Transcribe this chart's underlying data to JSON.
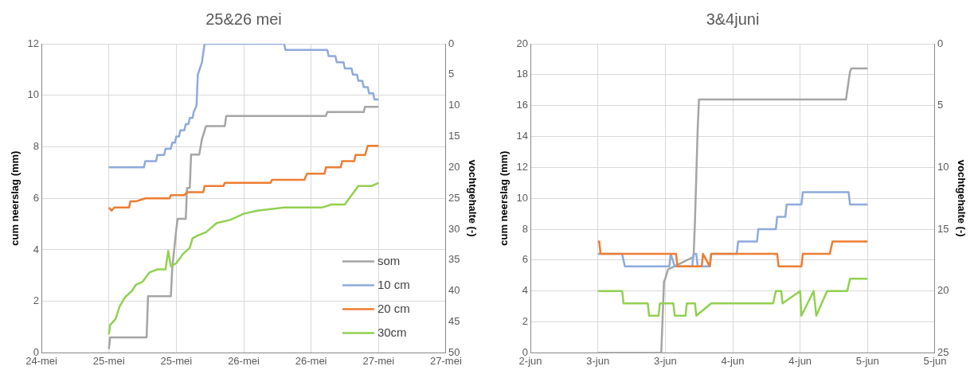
{
  "chart_data": [
    {
      "type": "line",
      "title": "25&26 mei",
      "ylabel": "cum neerslag (mm)",
      "y2label": "vochtgehalte (-)",
      "xlim": [
        "--05-24T12:00",
        "--05-27T12:00"
      ],
      "xticks": [
        {
          "value": "--05-24T12:00",
          "label": "24-mei"
        },
        {
          "value": "--05-25T00:00",
          "label": "25-mei"
        },
        {
          "value": "--05-25T12:00",
          "label": "25-mei"
        },
        {
          "value": "--05-26T00:00",
          "label": "26-mei"
        },
        {
          "value": "--05-26T12:00",
          "label": "26-mei"
        },
        {
          "value": "--05-27T00:00",
          "label": "27-mei"
        },
        {
          "value": "--05-27T12:00",
          "label": "27-mei"
        }
      ],
      "ylim": [
        0,
        12
      ],
      "yticks": [
        0,
        2,
        4,
        6,
        8,
        10,
        12
      ],
      "y2lim": [
        50,
        0
      ],
      "y2ticks": [
        0,
        5,
        10,
        15,
        20,
        25,
        30,
        35,
        40,
        45,
        50
      ],
      "grid": true,
      "legend": "bottom right",
      "series": [
        {
          "name": "som",
          "color": "#a5a5a5",
          "x": [
            "--05-25T00:00",
            "--05-25T00:14",
            "--05-25T06:43",
            "--05-25T06:58",
            "--05-25T11:02",
            "--05-25T11:17",
            "--05-25T12:00",
            "--05-25T12:14",
            "--05-25T13:41",
            "--05-25T13:55",
            "--05-25T14:24",
            "--05-25T14:38",
            "--05-25T16:05",
            "--05-25T16:34",
            "--05-25T17:17",
            "--05-25T20:38",
            "--05-25T20:53",
            "--05-26T14:38",
            "--05-26T14:53",
            "--05-26T21:22",
            "--05-26T21:36",
            "--05-27T00:00"
          ],
          "values": [
            0.15,
            0.6,
            0.6,
            2.2,
            2.2,
            3.3,
            4.8,
            5.2,
            5.2,
            6.4,
            6.4,
            7.7,
            7.7,
            8.3,
            8.8,
            8.8,
            9.2,
            9.2,
            9.35,
            9.35,
            9.55,
            9.55
          ]
        },
        {
          "name": "10 cm",
          "color": "#8eaadb",
          "axis": "y2",
          "x": [
            "--05-25T00:00",
            "--05-25T06:14",
            "--05-25T06:29",
            "--05-25T08:24",
            "--05-25T08:38",
            "--05-25T09:50",
            "--05-25T10:05",
            "--05-25T11:02",
            "--05-25T11:17",
            "--05-25T11:46",
            "--05-25T12:00",
            "--05-25T12:29",
            "--05-25T12:43",
            "--05-25T13:26",
            "--05-25T13:41",
            "--05-25T14:10",
            "--05-25T14:24",
            "--05-25T14:53",
            "--05-25T15:07",
            "--05-25T15:36",
            "--05-25T15:43",
            "--05-25T15:50",
            "--05-25T16:34",
            "--05-25T16:48",
            "--05-25T17:02",
            "--05-26T07:12",
            "--05-26T07:26",
            "--05-26T14:53",
            "--05-26T15:07",
            "--05-26T16:19",
            "--05-26T16:34",
            "--05-26T17:46",
            "--05-26T18:00",
            "--05-26T19:12",
            "--05-26T19:26",
            "--05-26T20:10",
            "--05-26T20:24",
            "--05-26T21:07",
            "--05-26T21:22",
            "--05-26T22:05",
            "--05-26T22:19",
            "--05-26T23:02",
            "--05-26T23:17",
            "--05-27T00:00"
          ],
          "values": [
            20,
            20,
            19,
            19,
            18,
            18,
            17,
            17,
            16,
            16,
            15,
            15,
            14,
            14,
            13,
            13,
            12,
            12,
            11,
            10,
            7.5,
            5,
            3,
            1.5,
            0,
            0,
            1,
            1,
            2,
            2,
            3,
            3,
            4,
            4,
            5,
            5,
            6,
            6,
            7,
            7,
            8,
            8,
            9,
            9
          ]
        },
        {
          "name": "20 cm",
          "color": "#ed7d31",
          "axis": "y2",
          "x": [
            "--05-25T00:00",
            "--05-25T00:29",
            "--05-25T00:58",
            "--05-25T01:26",
            "--05-25T03:36",
            "--05-25T03:50",
            "--05-25T04:48",
            "--05-25T06:29",
            "--05-25T10:48",
            "--05-25T11:02",
            "--05-25T12:00",
            "--05-25T13:26",
            "--05-25T13:55",
            "--05-25T16:48",
            "--05-25T17:02",
            "--05-25T20:24",
            "--05-25T20:38",
            "--05-26T04:48",
            "--05-26T05:02",
            "--05-26T10:48",
            "--05-26T11:17",
            "--05-26T12:00",
            "--05-26T14:24",
            "--05-26T14:38",
            "--05-26T17:17",
            "--05-26T17:31",
            "--05-26T19:41",
            "--05-26T19:55",
            "--05-26T21:36",
            "--05-26T22:05",
            "--05-27T00:00"
          ],
          "values": [
            26.5,
            27,
            26.5,
            26.5,
            26.5,
            25.5,
            25.5,
            25,
            25,
            24.5,
            24.5,
            24.5,
            24,
            24,
            23,
            23,
            22.5,
            22.5,
            22,
            22,
            21,
            21,
            21,
            20,
            20,
            19,
            19,
            18,
            18,
            16.5,
            16.5
          ]
        },
        {
          "name": "30cm",
          "color": "#92d050",
          "axis": "y2",
          "x": [
            "--05-25T00:00",
            "--05-25T00:14",
            "--05-25T01:12",
            "--05-25T01:55",
            "--05-25T02:53",
            "--05-25T04:05",
            "--05-25T04:48",
            "--05-25T06:00",
            "--05-25T07:12",
            "--05-25T08:38",
            "--05-25T10:05",
            "--05-25T10:34",
            "--05-25T11:02",
            "--05-25T12:00",
            "--05-25T13:12",
            "--05-25T14:24",
            "--05-25T14:53",
            "--05-25T15:50",
            "--05-25T17:17",
            "--05-25T19:12",
            "--05-25T21:36",
            "--05-26T00:00",
            "--05-26T02:24",
            "--05-26T07:12",
            "--05-26T12:00",
            "--05-26T13:55",
            "--05-26T15:36",
            "--05-26T18:00",
            "--05-26T19:12",
            "--05-26T20:24",
            "--05-26T22:48",
            "--05-27T00:00"
          ],
          "values": [
            47,
            45.5,
            44.5,
            42.5,
            41,
            40,
            39,
            38.5,
            37,
            36.5,
            36.5,
            33.5,
            36,
            35.5,
            34,
            33,
            31.5,
            31,
            30.5,
            29,
            28.5,
            27.5,
            27,
            26.5,
            26.5,
            26.5,
            26,
            26,
            24.5,
            23,
            23,
            22.5
          ]
        }
      ]
    },
    {
      "type": "line",
      "title": "3&4juni",
      "ylabel": "cum neerslag (mm)",
      "y2label": "vochtgehalte (-)",
      "xlim": [
        "--06-02T12:00",
        "--06-05T12:00"
      ],
      "xticks": [
        {
          "value": "--06-02T12:00",
          "label": "2-jun"
        },
        {
          "value": "--06-03T00:00",
          "label": "3-jun"
        },
        {
          "value": "--06-03T12:00",
          "label": "3-jun"
        },
        {
          "value": "--06-04T00:00",
          "label": "4-jun"
        },
        {
          "value": "--06-04T12:00",
          "label": "4-jun"
        },
        {
          "value": "--06-05T00:00",
          "label": "5-jun"
        },
        {
          "value": "--06-05T12:00",
          "label": "5-jun"
        }
      ],
      "ylim": [
        0,
        20
      ],
      "yticks": [
        0,
        2,
        4,
        6,
        8,
        10,
        12,
        14,
        16,
        18,
        20
      ],
      "y2lim": [
        25,
        0
      ],
      "y2ticks": [
        0,
        5,
        10,
        15,
        20,
        25
      ],
      "grid": true,
      "series": [
        {
          "color": "#a5a5a5",
          "x": [
            "--06-03T00:00",
            "--06-03T11:17",
            "--06-03T11:46",
            "--06-03T12:00",
            "--06-03T12:29",
            "--06-03T17:02",
            "--06-03T17:17",
            "--06-03T17:46",
            "--06-03T18:00",
            "--06-04T20:10",
            "--06-04T20:53",
            "--06-04T21:07",
            "--06-05T00:00"
          ],
          "values": [
            0,
            0,
            4.6,
            4.8,
            5.4,
            6.2,
            8.5,
            14.5,
            16.4,
            16.4,
            18.2,
            18.4,
            18.4
          ]
        },
        {
          "color": "#8eaadb",
          "axis": "y2",
          "x": [
            "--06-03T00:00",
            "--06-03T04:19",
            "--06-03T04:48",
            "--06-03T12:43",
            "--06-03T12:58",
            "--06-03T13:41",
            "--06-03T16:48",
            "--06-03T17:02",
            "--06-03T17:31",
            "--06-03T17:46",
            "--06-03T18:29",
            "--06-03T19:55",
            "--06-03T20:10",
            "--06-04T00:43",
            "--06-04T00:58",
            "--06-04T04:19",
            "--06-04T04:34",
            "--06-04T07:41",
            "--06-04T07:55",
            "--06-04T09:22",
            "--06-04T09:36",
            "--06-04T12:14",
            "--06-04T12:29",
            "--06-04T20:38",
            "--06-04T20:53",
            "--06-05T00:00"
          ],
          "values": [
            17,
            17,
            18,
            18,
            17,
            18,
            18,
            17,
            17,
            18,
            18,
            18,
            17,
            17,
            16,
            16,
            15,
            15,
            14,
            14,
            13,
            13,
            12,
            12,
            13,
            13
          ]
        },
        {
          "color": "#ed7d31",
          "axis": "y2",
          "x": [
            "--06-03T00:00",
            "--06-03T00:14",
            "--06-03T00:29",
            "--06-03T13:55",
            "--06-03T14:10",
            "--06-03T18:29",
            "--06-03T18:43",
            "--06-03T19:55",
            "--06-03T20:10",
            "--06-04T07:55",
            "--06-04T08:10",
            "--06-04T12:14",
            "--06-04T12:29",
            "--06-04T17:17",
            "--06-04T17:46",
            "--06-05T00:00"
          ],
          "values": [
            16,
            16,
            17,
            17,
            18,
            18,
            17,
            18,
            17,
            17,
            18,
            18,
            17,
            17,
            16,
            16
          ]
        },
        {
          "color": "#92d050",
          "axis": "y2",
          "x": [
            "--06-03T00:00",
            "--06-03T04:19",
            "--06-03T04:34",
            "--06-03T06:00",
            "--06-03T06:14",
            "--06-03T08:53",
            "--06-03T09:07",
            "--06-03T10:48",
            "--06-03T11:02",
            "--06-03T13:26",
            "--06-03T13:41",
            "--06-03T15:36",
            "--06-03T15:50",
            "--06-03T17:17",
            "--06-03T17:31",
            "--06-03T20:10",
            "--06-03T20:24",
            "--06-04T07:12",
            "--06-04T07:41",
            "--06-04T08:38",
            "--06-04T08:53",
            "--06-04T12:00",
            "--06-04T12:14",
            "--06-04T14:24",
            "--06-04T14:53",
            "--06-04T16:48",
            "--06-04T20:24",
            "--06-04T20:53",
            "--06-05T00:00"
          ],
          "values": [
            20,
            20,
            21,
            21,
            21,
            21,
            22,
            22,
            21,
            21,
            22,
            22,
            21,
            21,
            22,
            21,
            21,
            21,
            20,
            20,
            21,
            20,
            22,
            20,
            22,
            20,
            20,
            19,
            19
          ]
        }
      ]
    }
  ]
}
